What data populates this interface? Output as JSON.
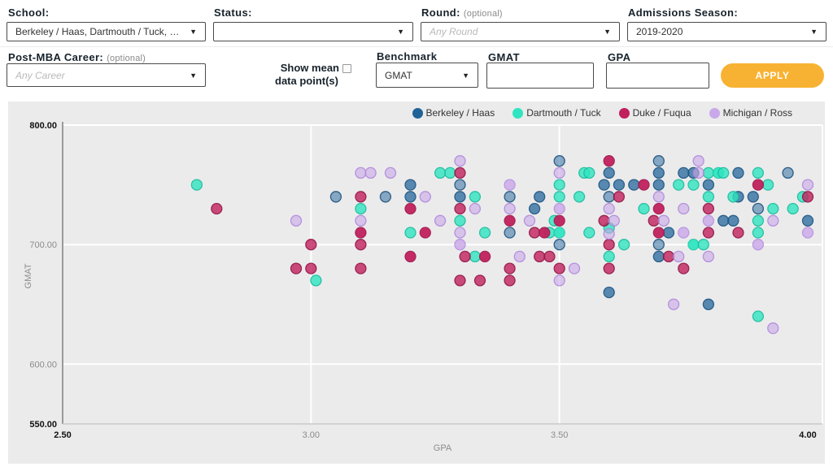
{
  "filters": {
    "school": {
      "label": "School:",
      "value": "Berkeley / Haas, Dartmouth / Tuck, Duke / F..."
    },
    "status": {
      "label": "Status:",
      "value": ""
    },
    "round": {
      "label": "Round:",
      "optional": "(optional)",
      "placeholder": "Any Round"
    },
    "season": {
      "label": "Admissions Season:",
      "value": "2019-2020"
    },
    "career": {
      "label": "Post-MBA Career:",
      "optional": "(optional)",
      "placeholder": "Any Career"
    },
    "show_mean": {
      "line1": "Show mean",
      "line2": "data point(s)",
      "checked": false
    },
    "benchmark": {
      "label": "Benchmark",
      "value": "GMAT"
    },
    "gmat_field": {
      "label": "GMAT",
      "value": ""
    },
    "gpa_field": {
      "label": "GPA",
      "value": ""
    },
    "apply": {
      "label": "APPLY",
      "color": "#f8b233"
    }
  },
  "chart_data": {
    "type": "scatter",
    "xlabel": "GPA",
    "ylabel": "GMAT",
    "xlim": [
      2.5,
      4.0
    ],
    "ylim": [
      550,
      800
    ],
    "xticks": [
      {
        "v": 2.5,
        "label": "2.50",
        "bold": true
      },
      {
        "v": 3.0,
        "label": "3.00",
        "bold": false
      },
      {
        "v": 3.5,
        "label": "3.50",
        "bold": false
      },
      {
        "v": 4.0,
        "label": "4.00",
        "bold": true
      }
    ],
    "yticks": [
      {
        "v": 800,
        "label": "800.00",
        "bold": true
      },
      {
        "v": 700,
        "label": "700.00",
        "bold": false
      },
      {
        "v": 600,
        "label": "600.00",
        "bold": false
      },
      {
        "v": 550,
        "label": "550.00",
        "bold": true
      }
    ],
    "grid_x": [
      3.0,
      3.5
    ],
    "grid_y": [
      800,
      700,
      600
    ],
    "legend_position": "top-right",
    "series": [
      {
        "name": "Berkeley / Haas",
        "fill": "#1f6399",
        "stroke": "#154a74",
        "opacity": 0.5,
        "points": [
          [
            3.05,
            740
          ],
          [
            3.15,
            740
          ],
          [
            3.2,
            750,
            2
          ],
          [
            3.2,
            740,
            2
          ],
          [
            3.3,
            750
          ],
          [
            3.3,
            740,
            2
          ],
          [
            3.4,
            740
          ],
          [
            3.4,
            710
          ],
          [
            3.46,
            740,
            2
          ],
          [
            3.45,
            730,
            2
          ],
          [
            3.5,
            770
          ],
          [
            3.5,
            700
          ],
          [
            3.59,
            750,
            2
          ],
          [
            3.6,
            760,
            2
          ],
          [
            3.62,
            750,
            2
          ],
          [
            3.65,
            750,
            2
          ],
          [
            3.6,
            740
          ],
          [
            3.6,
            660,
            2
          ],
          [
            3.7,
            770
          ],
          [
            3.7,
            760,
            2
          ],
          [
            3.7,
            750,
            2
          ],
          [
            3.7,
            700
          ],
          [
            3.7,
            690,
            2
          ],
          [
            3.72,
            710,
            2
          ],
          [
            3.75,
            760,
            2
          ],
          [
            3.77,
            760,
            2
          ],
          [
            3.8,
            750,
            2
          ],
          [
            3.8,
            650,
            2
          ],
          [
            3.83,
            720,
            2
          ],
          [
            3.85,
            720,
            2
          ],
          [
            3.86,
            760,
            2
          ],
          [
            3.86,
            740,
            2
          ],
          [
            3.89,
            740,
            2
          ],
          [
            3.9,
            730
          ],
          [
            3.96,
            760
          ],
          [
            4.0,
            720,
            2
          ]
        ]
      },
      {
        "name": "Dartmouth / Tuck",
        "fill": "#2fe5c0",
        "stroke": "#1db髙",
        "opacity": 0.8,
        "points": []
      },
      {
        "name": "Duke / Fuqua",
        "fill": "#c0205c",
        "stroke": "#8e1243",
        "opacity": 0.8,
        "points": [
          [
            2.81,
            730
          ],
          [
            2.97,
            680
          ],
          [
            3.0,
            700
          ],
          [
            3.0,
            680
          ],
          [
            3.1,
            740
          ],
          [
            3.1,
            710,
            2
          ],
          [
            3.1,
            700
          ],
          [
            3.1,
            680
          ],
          [
            3.2,
            730,
            2
          ],
          [
            3.2,
            690,
            2
          ],
          [
            3.23,
            710,
            2
          ],
          [
            3.3,
            760
          ],
          [
            3.3,
            730
          ],
          [
            3.3,
            670
          ],
          [
            3.31,
            690
          ],
          [
            3.34,
            670
          ],
          [
            3.35,
            690,
            2
          ],
          [
            3.4,
            720,
            2
          ],
          [
            3.4,
            680
          ],
          [
            3.4,
            670
          ],
          [
            3.45,
            710
          ],
          [
            3.46,
            690
          ],
          [
            3.47,
            710,
            2
          ],
          [
            3.48,
            690
          ],
          [
            3.5,
            720,
            2
          ],
          [
            3.5,
            680
          ],
          [
            3.59,
            720
          ],
          [
            3.6,
            770,
            2
          ],
          [
            3.6,
            700
          ],
          [
            3.6,
            680
          ],
          [
            3.62,
            740
          ],
          [
            3.67,
            750,
            2
          ],
          [
            3.69,
            720
          ],
          [
            3.7,
            730,
            2
          ],
          [
            3.7,
            710,
            2
          ],
          [
            3.72,
            690
          ],
          [
            3.75,
            680
          ],
          [
            3.8,
            730
          ],
          [
            3.8,
            710
          ],
          [
            3.86,
            710
          ],
          [
            3.9,
            750,
            2
          ],
          [
            4.0,
            740
          ]
        ]
      },
      {
        "name": "Michigan / Ross",
        "fill": "#c9a8ea",
        "stroke": "#ad85d8",
        "opacity": 0.6,
        "points": [
          [
            2.97,
            720
          ],
          [
            3.1,
            760
          ],
          [
            3.12,
            760
          ],
          [
            3.16,
            760
          ],
          [
            3.1,
            720
          ],
          [
            3.23,
            740
          ],
          [
            3.26,
            720
          ],
          [
            3.3,
            770
          ],
          [
            3.3,
            710
          ],
          [
            3.3,
            700,
            2
          ],
          [
            3.33,
            730
          ],
          [
            3.4,
            750,
            2
          ],
          [
            3.4,
            730
          ],
          [
            3.42,
            690
          ],
          [
            3.44,
            720
          ],
          [
            3.5,
            760
          ],
          [
            3.5,
            730,
            2
          ],
          [
            3.5,
            670
          ],
          [
            3.53,
            680
          ],
          [
            3.6,
            730
          ],
          [
            3.61,
            720
          ],
          [
            3.6,
            709
          ],
          [
            3.7,
            740
          ],
          [
            3.71,
            720
          ],
          [
            3.73,
            650
          ],
          [
            3.74,
            690
          ],
          [
            3.75,
            730
          ],
          [
            3.75,
            710,
            2
          ],
          [
            3.78,
            770
          ],
          [
            3.78,
            760
          ],
          [
            3.8,
            720,
            2
          ],
          [
            3.8,
            690
          ],
          [
            3.9,
            700,
            2
          ],
          [
            3.93,
            720
          ],
          [
            3.93,
            630
          ],
          [
            4.0,
            750
          ],
          [
            4.0,
            710,
            2
          ]
        ]
      }
    ],
    "dartmouth_points": [
      [
        2.77,
        750
      ],
      [
        3.01,
        670
      ],
      [
        3.1,
        730
      ],
      [
        3.2,
        710
      ],
      [
        3.26,
        760
      ],
      [
        3.28,
        760
      ],
      [
        3.3,
        720
      ],
      [
        3.33,
        740
      ],
      [
        3.33,
        690
      ],
      [
        3.35,
        710
      ],
      [
        3.48,
        710
      ],
      [
        3.49,
        720
      ],
      [
        3.5,
        750
      ],
      [
        3.5,
        740
      ],
      [
        3.5,
        710,
        2
      ],
      [
        3.54,
        740
      ],
      [
        3.55,
        760
      ],
      [
        3.56,
        760
      ],
      [
        3.56,
        710
      ],
      [
        3.6,
        714
      ],
      [
        3.6,
        690
      ],
      [
        3.63,
        700
      ],
      [
        3.67,
        730
      ],
      [
        3.74,
        750
      ],
      [
        3.77,
        750
      ],
      [
        3.77,
        700,
        2
      ],
      [
        3.79,
        700
      ],
      [
        3.8,
        760
      ],
      [
        3.82,
        760,
        2
      ],
      [
        3.83,
        760
      ],
      [
        3.8,
        740
      ],
      [
        3.85,
        740
      ],
      [
        3.9,
        760
      ],
      [
        3.9,
        720
      ],
      [
        3.9,
        710
      ],
      [
        3.9,
        640
      ],
      [
        3.92,
        750
      ],
      [
        3.93,
        730
      ],
      [
        3.97,
        730
      ],
      [
        3.99,
        740
      ]
    ],
    "plot_bg": "#ebebec",
    "grid_color": "#ffffff",
    "axis_color": "#9a9a9a",
    "tick_color": "#8c8c8c",
    "tick_bold_color": "#111111"
  }
}
